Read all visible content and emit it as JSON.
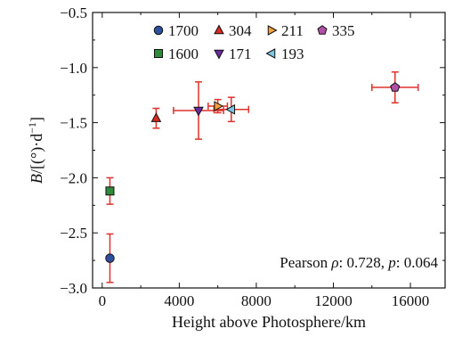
{
  "chart_data": {
    "type": "scatter",
    "xlabel": "Height above Photosphere/km",
    "ylabel_parts": {
      "B": "B",
      "rest": "/[(°)·d",
      "sup": "−1",
      "end": "]"
    },
    "xlim": [
      -500,
      17800
    ],
    "ylim": [
      -3.0,
      -0.5
    ],
    "xticks": [
      0,
      4000,
      8000,
      12000,
      16000
    ],
    "xtick_labels": [
      "0",
      "4000",
      "8000",
      "12000",
      "16000"
    ],
    "yticks": [
      -3.0,
      -2.5,
      -2.0,
      -1.5,
      -1.0,
      -0.5
    ],
    "ytick_labels": [
      "−3.0",
      "−2.5",
      "−2.0",
      "−1.5",
      "−1.0",
      "−0.5"
    ],
    "grid": false,
    "legend_position": "top-center",
    "error_color": "#e0312b",
    "annotation": {
      "pearson": "Pearson ",
      "rho": "ρ",
      "mid": ": 0.728, ",
      "p": "p",
      "end": ": 0.064"
    },
    "series": [
      {
        "name": "1700",
        "marker": "circle",
        "color": "#2e4ea0",
        "x": 400,
        "y": -2.73,
        "xerr": 0,
        "yerr": 0.22
      },
      {
        "name": "304",
        "marker": "triangle-up",
        "color": "#d62a22",
        "x": 2800,
        "y": -1.46,
        "xerr": 0,
        "yerr": 0.09
      },
      {
        "name": "211",
        "marker": "triangle-right",
        "color": "#f2a13c",
        "x": 6000,
        "y": -1.35,
        "xerr": 500,
        "yerr": 0.06
      },
      {
        "name": "335",
        "marker": "pentagon",
        "color": "#b04fa6",
        "x": 15200,
        "y": -1.18,
        "xerr": 1200,
        "yerr": 0.14
      },
      {
        "name": "1600",
        "marker": "square",
        "color": "#2f8a3a",
        "x": 400,
        "y": -2.12,
        "xerr": 0,
        "yerr": 0.12
      },
      {
        "name": "171",
        "marker": "triangle-down",
        "color": "#6a2aa0",
        "x": 5000,
        "y": -1.39,
        "xerr": 1300,
        "yerr": 0.26
      },
      {
        "name": "193",
        "marker": "triangle-left",
        "color": "#7ac7e6",
        "x": 6700,
        "y": -1.38,
        "xerr": 900,
        "yerr": 0.11
      }
    ]
  }
}
